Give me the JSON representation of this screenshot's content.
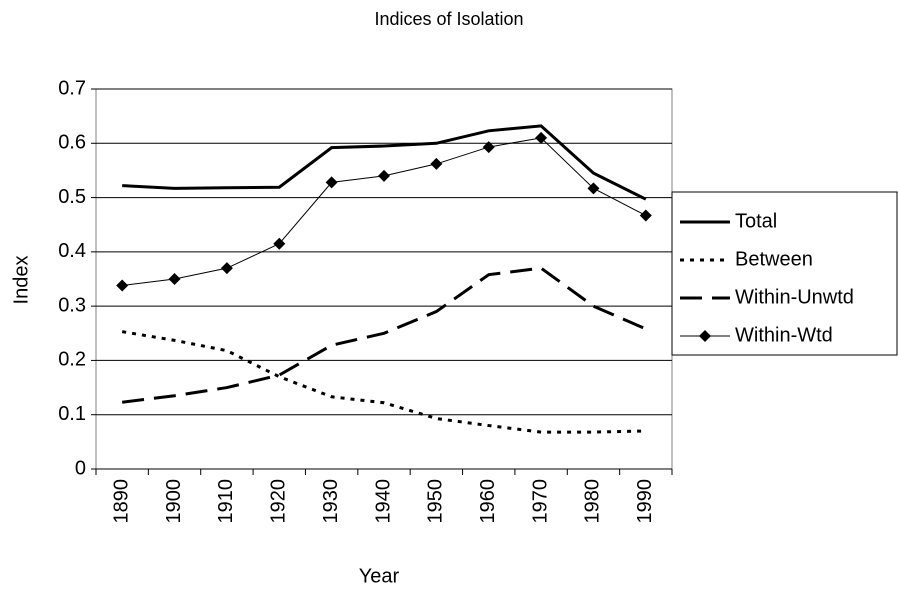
{
  "chart_data": {
    "type": "line",
    "title": "Indices of Isolation",
    "x_label": "Year",
    "y_label": "Index",
    "categories": [
      "1890",
      "1900",
      "1910",
      "1920",
      "1930",
      "1940",
      "1950",
      "1960",
      "1970",
      "1980",
      "1990"
    ],
    "series": [
      {
        "name": "Total",
        "color": "#000000",
        "line_style": "solid-thick",
        "values": [
          0.522,
          0.517,
          0.518,
          0.519,
          0.592,
          0.595,
          0.6,
          0.623,
          0.632,
          0.545,
          0.497
        ]
      },
      {
        "name": "Between",
        "color": "#000000",
        "line_style": "dotted",
        "values": [
          0.253,
          0.237,
          0.218,
          0.17,
          0.133,
          0.122,
          0.093,
          0.08,
          0.068,
          0.068,
          0.07
        ]
      },
      {
        "name": "Within-Unwtd",
        "color": "#000000",
        "line_style": "dashed",
        "values": [
          0.123,
          0.135,
          0.15,
          0.173,
          0.228,
          0.25,
          0.29,
          0.358,
          0.37,
          0.3,
          0.258
        ]
      },
      {
        "name": "Within-Wtd",
        "color": "#000000",
        "line_style": "solid-thin",
        "marker": "diamond",
        "values": [
          0.338,
          0.35,
          0.37,
          0.415,
          0.528,
          0.54,
          0.562,
          0.593,
          0.61,
          0.517,
          0.467
        ]
      }
    ],
    "ylim": [
      0,
      0.7
    ],
    "yticks": [
      0,
      0.1,
      0.2,
      0.3,
      0.4,
      0.5,
      0.6,
      0.7
    ],
    "grid": true,
    "legend": "right"
  }
}
